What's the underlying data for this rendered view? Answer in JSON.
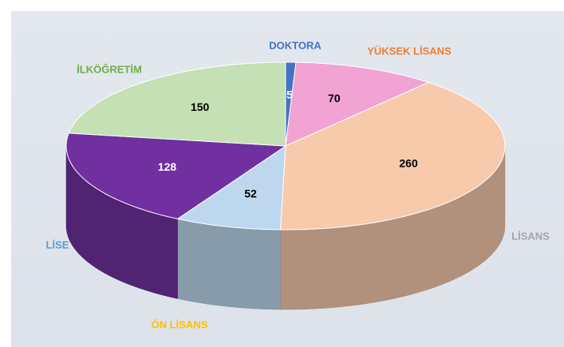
{
  "chart_data": {
    "type": "pie3d",
    "categories": [
      "DOKTORA",
      "YÜKSEK LİSANS",
      "LİSANS",
      "ÖN LİSANS",
      "LİSE",
      "İLKÖĞRETİM"
    ],
    "values": [
      5,
      70,
      260,
      52,
      128,
      150
    ],
    "colors": [
      "#4472c4",
      "#f1a3d3",
      "#f7caac",
      "#bdd7ee",
      "#7030a0",
      "#c5e0b4"
    ],
    "label_colors": [
      "#4472c4",
      "#ed7d31",
      "#a5a5a5",
      "#ffc000",
      "#5b9bd5",
      "#70ad47"
    ]
  }
}
